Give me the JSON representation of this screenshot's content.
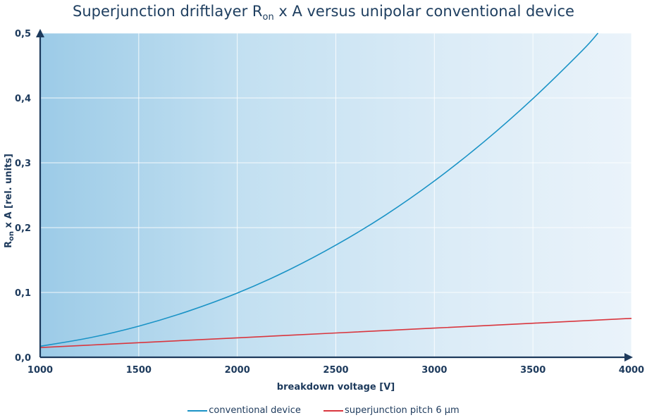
{
  "title": {
    "main": "Superjunction driftlayer R",
    "sub": "on",
    "rest": " x A versus unipolar conventional device"
  },
  "chart_data": {
    "type": "line",
    "title": "Superjunction driftlayer Ron x A versus unipolar conventional device",
    "xlabel": "breakdown voltage [V]",
    "ylabel": {
      "main": "R",
      "sub": "on",
      "rest": " x A [rel. units]"
    },
    "xlim": [
      1000,
      4000
    ],
    "ylim": [
      0,
      0.5
    ],
    "x_ticks": [
      1000,
      1500,
      2000,
      2500,
      3000,
      3500,
      4000
    ],
    "x_tick_labels": [
      "1000",
      "1500",
      "2000",
      "2500",
      "3000",
      "3500",
      "4000"
    ],
    "y_ticks": [
      0,
      0.1,
      0.2,
      0.3,
      0.4,
      0.5
    ],
    "y_tick_labels": [
      "0,0",
      "0,1",
      "0,2",
      "0,3",
      "0,4",
      "0,5"
    ],
    "grid": true,
    "legend_position": "bottom",
    "series": [
      {
        "name": "conventional device",
        "color": "#1a93c6",
        "x": [
          1000,
          1250,
          1500,
          1750,
          2000,
          2250,
          2500,
          2750,
          3000,
          3250,
          3500,
          3750,
          3830
        ],
        "y": [
          0.017,
          0.03,
          0.048,
          0.071,
          0.099,
          0.133,
          0.173,
          0.219,
          0.272,
          0.332,
          0.399,
          0.473,
          0.5
        ]
      },
      {
        "name": "superjunction pitch 6 µm",
        "color": "#d9363e",
        "x": [
          1000,
          1500,
          2000,
          2500,
          3000,
          3500,
          4000
        ],
        "y": [
          0.015,
          0.0225,
          0.03,
          0.0375,
          0.045,
          0.0525,
          0.06
        ]
      }
    ]
  }
}
